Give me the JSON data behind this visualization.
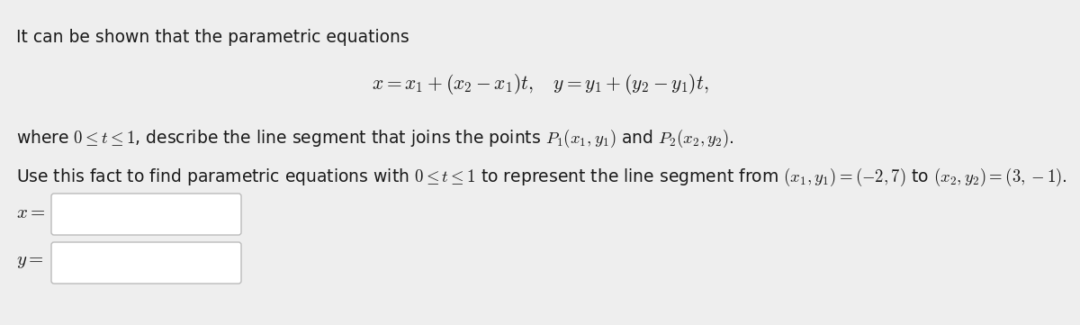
{
  "bg_color": "#eeeeee",
  "text_color": "#1a1a1a",
  "line1": "It can be shown that the parametric equations",
  "line2_math": "$x = x_1 + (x_2 - x_1)t, \\quad y = y_1 + (y_2 - y_1)t,$",
  "line3": "where $0 \\leq t \\leq 1$, describe the line segment that joins the points $P_1(x_1, y_1)$ and $P_2(x_2, y_2)$.",
  "line4": "Use this fact to find parametric equations with $0 \\leq t \\leq 1$ to represent the line segment from $(x_1, y_1) = (-2, 7)$ to $(x_2, y_2) = (3, -1)$.",
  "label_x": "$x =$",
  "label_y": "$y =$",
  "font_size_text": 13.5,
  "font_size_math": 15.5,
  "font_size_label": 15
}
